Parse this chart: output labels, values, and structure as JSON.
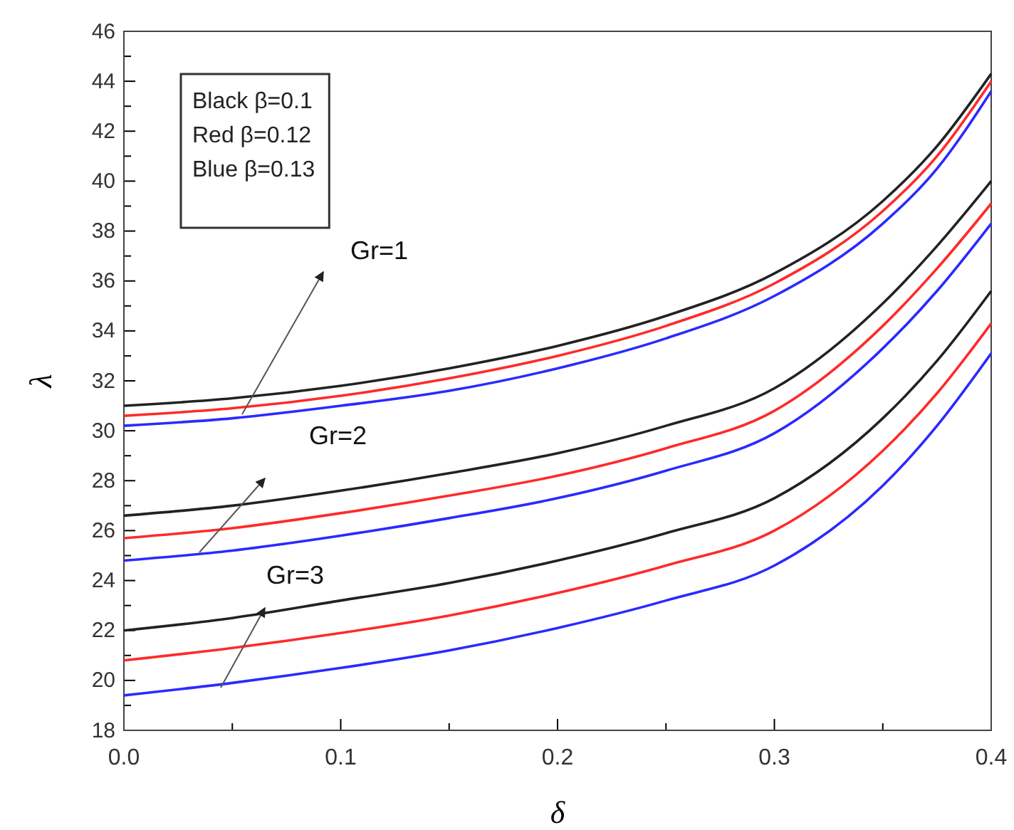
{
  "chart_data": {
    "type": "line",
    "xlabel": "δ",
    "ylabel": "λ",
    "x": [
      0,
      0.05,
      0.1,
      0.15,
      0.2,
      0.25,
      0.3,
      0.35,
      0.375,
      0.4
    ],
    "series": [
      {
        "color": "#222222",
        "values": [
          31.0,
          31.3,
          31.8,
          32.5,
          33.4,
          34.6,
          36.3,
          39.2,
          41.4,
          44.3
        ]
      },
      {
        "color": "#ff2a2a",
        "values": [
          30.6,
          30.9,
          31.4,
          32.1,
          33.0,
          34.2,
          35.9,
          38.8,
          41.0,
          44.0
        ]
      },
      {
        "color": "#2a2aff",
        "values": [
          30.2,
          30.5,
          31.0,
          31.6,
          32.5,
          33.7,
          35.4,
          38.3,
          40.5,
          43.6
        ]
      },
      {
        "color": "#222222",
        "values": [
          26.6,
          27.0,
          27.6,
          28.3,
          29.1,
          30.2,
          31.7,
          35.1,
          37.4,
          40.0
        ]
      },
      {
        "color": "#ff2a2a",
        "values": [
          25.7,
          26.1,
          26.7,
          27.4,
          28.2,
          29.3,
          30.8,
          34.2,
          36.5,
          39.1
        ]
      },
      {
        "color": "#2a2aff",
        "values": [
          24.8,
          25.2,
          25.8,
          26.5,
          27.3,
          28.4,
          29.9,
          33.3,
          35.6,
          38.3
        ]
      },
      {
        "color": "#222222",
        "values": [
          22.0,
          22.5,
          23.2,
          23.9,
          24.8,
          25.9,
          27.3,
          30.5,
          32.8,
          35.6
        ]
      },
      {
        "color": "#ff2a2a",
        "values": [
          20.8,
          21.3,
          21.9,
          22.6,
          23.5,
          24.6,
          26.0,
          29.2,
          31.5,
          34.3
        ]
      },
      {
        "color": "#2a2aff",
        "values": [
          19.4,
          19.9,
          20.5,
          21.2,
          22.1,
          23.2,
          24.6,
          27.8,
          30.2,
          33.1
        ]
      }
    ],
    "xlim": [
      0,
      0.4
    ],
    "xticks": [
      {
        "value": 0,
        "label": "0.0"
      },
      {
        "value": 0.05,
        "label": null
      },
      0.1,
      {
        "value": 0.15,
        "label": null
      },
      0.2,
      {
        "value": 0.25,
        "label": null
      },
      0.3,
      {
        "value": 0.35,
        "label": null
      },
      0.4
    ],
    "ylim": [
      18,
      46
    ],
    "yticks": [
      18,
      {
        "value": 19,
        "label": null
      },
      20,
      {
        "value": 21,
        "label": null
      },
      22,
      {
        "value": 23,
        "label": null
      },
      24,
      {
        "value": 25,
        "label": null
      },
      26,
      {
        "value": 27,
        "label": null
      },
      28,
      {
        "value": 29,
        "label": null
      },
      30,
      {
        "value": 31,
        "label": null
      },
      32,
      {
        "value": 33,
        "label": null
      },
      34,
      {
        "value": 35,
        "label": null
      },
      36,
      {
        "value": 37,
        "label": null
      },
      38,
      {
        "value": 39,
        "label": null
      },
      40,
      {
        "value": 41,
        "label": null
      },
      42,
      {
        "value": 43,
        "label": null
      },
      44,
      {
        "value": 45,
        "label": null
      },
      46
    ],
    "grid": false,
    "marker": "none",
    "line_style": "solid",
    "annotations": [
      "Black β=0.1",
      "Red   β=0.12",
      "Blue  β=0.13",
      "Gr=1",
      "Gr=2",
      "Gr=3"
    ]
  }
}
